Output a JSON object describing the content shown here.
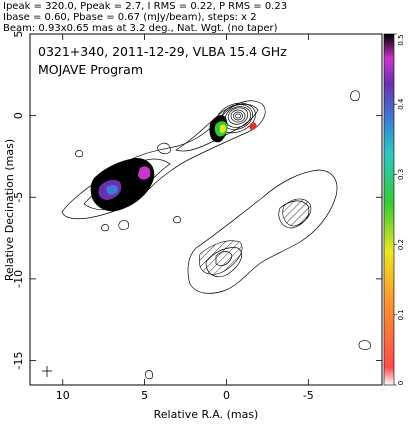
{
  "header": {
    "line1": "Ipeak = 320.0, Ppeak = 2.7, I RMS = 0.22, P RMS = 0.23",
    "line2": "Ibase = 0.60, Pbase = 0.67 (mJy/beam), steps: x 2",
    "line3": "Beam: 0.93x0.65 mas at 3.2 deg., Nat. Wgt. (no taper)"
  },
  "chart_data": {
    "type": "contour",
    "title": "0321+340, 2011-12-29, VLBA 15.4 GHz",
    "subtitle": "MOJAVE Program",
    "xlabel": "Relative R.A. (mas)",
    "ylabel": "Relative Decination (mas)",
    "xlim": [
      12.0,
      -9.5
    ],
    "ylim": [
      -16.5,
      5.0
    ],
    "x_ticks": [
      "10",
      "5",
      "0",
      "-5"
    ],
    "y_ticks": [
      "5",
      "0",
      "-5",
      "-10",
      "-15"
    ],
    "colorbar": {
      "ticks": [
        "0",
        "0.1",
        "0.2",
        "0.3",
        "0.4",
        "0.5"
      ],
      "range": [
        0,
        0.5
      ]
    },
    "contour_base_mJy_per_beam": 0.6,
    "contour_step_factor": 2,
    "peak_intensity_mJy_per_beam": 320.0,
    "core_position_mas": [
      0.0,
      0.0
    ],
    "beam": {
      "major_mas": 0.93,
      "minor_mas": 0.65,
      "pa_deg": 3.2
    }
  }
}
